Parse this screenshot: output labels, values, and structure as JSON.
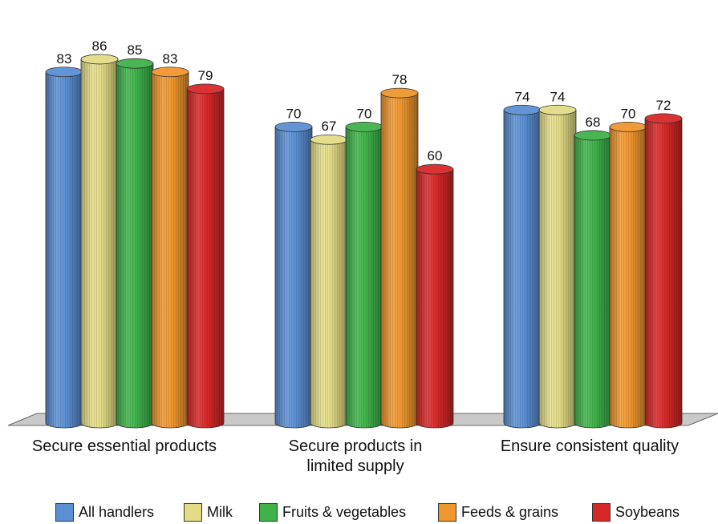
{
  "chart_data": {
    "type": "bar",
    "categories": [
      [
        "Secure essential products"
      ],
      [
        "Secure products in",
        "limited supply"
      ],
      [
        "Ensure consistent quality"
      ]
    ],
    "series": [
      {
        "name": "All handlers",
        "color": "#5b8fd4",
        "values": [
          83,
          70,
          74
        ]
      },
      {
        "name": "Milk",
        "color": "#e3dc86",
        "values": [
          86,
          67,
          74
        ]
      },
      {
        "name": "Fruits & vegetables",
        "color": "#3fb24a",
        "values": [
          85,
          70,
          68
        ]
      },
      {
        "name": "Feeds & grains",
        "color": "#ef962e",
        "values": [
          83,
          78,
          70
        ]
      },
      {
        "name": "Soybeans",
        "color": "#d72828",
        "values": [
          79,
          60,
          72
        ]
      }
    ],
    "bar_style": "3d-cylinder",
    "data_labels": true,
    "legend_position": "bottom",
    "grid": false
  }
}
